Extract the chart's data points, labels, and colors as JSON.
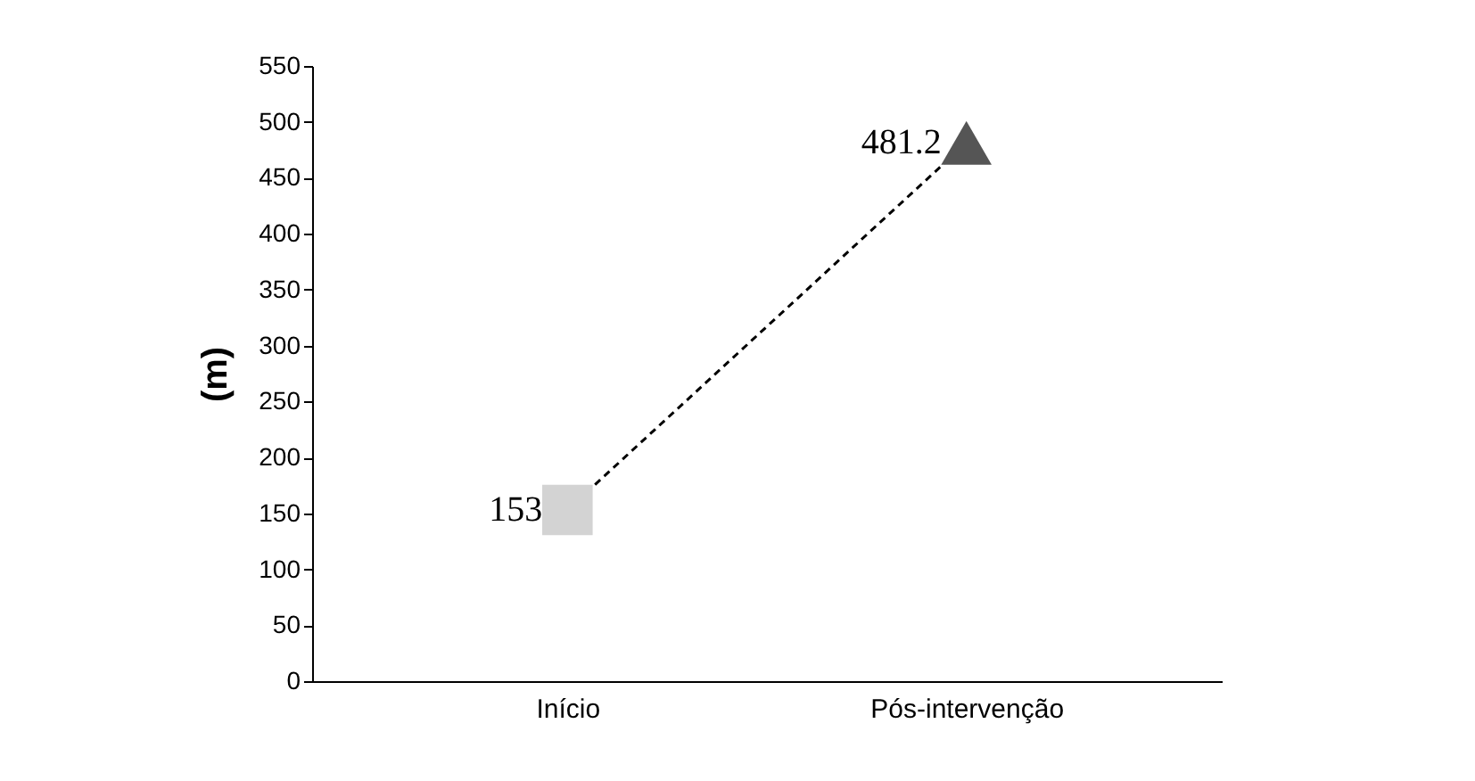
{
  "chart_data": {
    "type": "line",
    "ylabel": "(m)",
    "categories": [
      "Início",
      "Pós-intervenção"
    ],
    "series": [
      {
        "color": "#000000",
        "values": [
          153,
          481.2
        ],
        "value_labels": [
          "153",
          "481.2"
        ],
        "line_style": "dashed",
        "marker": "none"
      },
      {
        "type": "scatter",
        "color": "#d3d3d3",
        "values": [
          153,
          null
        ],
        "marker": "square"
      },
      {
        "type": "scatter",
        "color": "#555555",
        "values": [
          null,
          481.2
        ],
        "marker": "triangle"
      }
    ],
    "ylim": [
      0,
      550
    ],
    "yticks": [
      0,
      50,
      100,
      150,
      200,
      250,
      300,
      350,
      400,
      450,
      500,
      550
    ],
    "grid": false
  }
}
